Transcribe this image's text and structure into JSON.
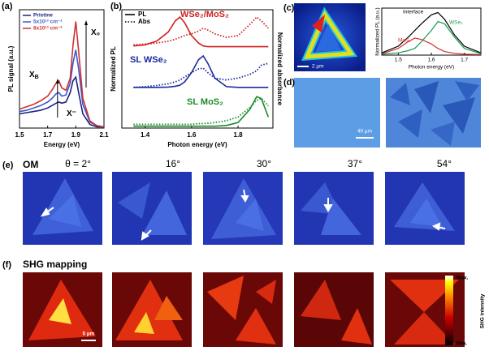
{
  "chart_data": [
    {
      "type": "line",
      "xlabel": "Energy (eV)",
      "ylabel": "PL signal (a.u.)",
      "x": [
        1.5,
        1.55,
        1.6,
        1.65,
        1.7,
        1.73,
        1.76,
        1.78,
        1.8,
        1.83,
        1.86,
        1.88,
        1.9,
        1.92,
        1.95,
        2.0,
        2.05,
        2.1
      ],
      "xlim": [
        1.5,
        2.1
      ],
      "xticks": [
        1.5,
        1.7,
        1.9,
        2.1
      ],
      "ylim": [
        0,
        1
      ],
      "series": [
        {
          "name": "Pristine",
          "color": "#1a237e",
          "values": [
            0.12,
            0.13,
            0.14,
            0.15,
            0.17,
            0.19,
            0.21,
            0.22,
            0.21,
            0.22,
            0.3,
            0.4,
            0.43,
            0.3,
            0.12,
            0.03,
            0.01,
            0.01
          ]
        },
        {
          "name": "5x10¹³ cm⁻²",
          "color": "#3a5ad0",
          "values": [
            0.14,
            0.15,
            0.17,
            0.19,
            0.22,
            0.25,
            0.29,
            0.3,
            0.27,
            0.28,
            0.38,
            0.55,
            0.66,
            0.5,
            0.2,
            0.05,
            0.02,
            0.01
          ]
        },
        {
          "name": "8x10¹³ cm⁻²",
          "color": "#d03030",
          "values": [
            0.16,
            0.18,
            0.2,
            0.23,
            0.27,
            0.32,
            0.38,
            0.4,
            0.34,
            0.32,
            0.42,
            0.7,
            0.9,
            0.65,
            0.25,
            0.06,
            0.02,
            0.01
          ]
        }
      ],
      "annotations": [
        {
          "text": "X",
          "sub": "B"
        },
        {
          "text": "X⁻"
        },
        {
          "text": "X₀"
        }
      ]
    },
    {
      "type": "line",
      "xlabel": "Photon energy (eV)",
      "ylabel": "Normalized PL",
      "y2label": "Normalized absorbance",
      "x": [
        1.35,
        1.4,
        1.45,
        1.5,
        1.53,
        1.55,
        1.57,
        1.6,
        1.63,
        1.65,
        1.67,
        1.7,
        1.75,
        1.8,
        1.85,
        1.88,
        1.9,
        1.93
      ],
      "xlim": [
        1.3,
        1.95
      ],
      "xticks": [
        1.4,
        1.6,
        1.8
      ],
      "ylim": [
        0,
        3.2
      ],
      "legend": [
        {
          "label": "PL",
          "style": "solid"
        },
        {
          "label": "Abs",
          "style": "dotted"
        }
      ],
      "series": [
        {
          "name": "WSe₂/MoS₂",
          "color": "#d02020",
          "style": "solid",
          "values": [
            2.22,
            2.25,
            2.35,
            2.6,
            2.9,
            3.0,
            2.85,
            2.5,
            2.3,
            2.22,
            2.2,
            2.2,
            2.2,
            2.2,
            2.2,
            2.2,
            2.2,
            2.2
          ]
        },
        {
          "color": "#d02020",
          "style": "dotted",
          "values": [
            2.25,
            2.27,
            2.3,
            2.35,
            2.4,
            2.45,
            2.5,
            2.55,
            2.62,
            2.7,
            2.65,
            2.55,
            2.45,
            2.5,
            2.8,
            3.0,
            2.9,
            2.7
          ]
        },
        {
          "name": "SL WSe₂",
          "color": "#1a2a9a",
          "style": "solid",
          "values": [
            1.1,
            1.1,
            1.1,
            1.11,
            1.13,
            1.16,
            1.25,
            1.5,
            1.85,
            1.95,
            1.75,
            1.35,
            1.12,
            1.1,
            1.1,
            1.1,
            1.1,
            1.1
          ]
        },
        {
          "color": "#1a2a9a",
          "style": "dotted",
          "values": [
            1.1,
            1.12,
            1.15,
            1.2,
            1.25,
            1.3,
            1.38,
            1.5,
            1.6,
            1.62,
            1.5,
            1.35,
            1.3,
            1.35,
            1.45,
            1.55,
            1.7,
            1.75
          ]
        },
        {
          "name": "SL MoS₂",
          "color": "#1a8a2a",
          "style": "solid",
          "values": [
            0.05,
            0.05,
            0.05,
            0.05,
            0.05,
            0.05,
            0.05,
            0.05,
            0.05,
            0.05,
            0.05,
            0.05,
            0.07,
            0.15,
            0.5,
            0.85,
            0.8,
            0.3
          ]
        },
        {
          "color": "#1a8a2a",
          "style": "dotted",
          "values": [
            0.1,
            0.1,
            0.1,
            0.1,
            0.1,
            0.1,
            0.1,
            0.1,
            0.12,
            0.12,
            0.13,
            0.15,
            0.2,
            0.3,
            0.55,
            0.75,
            0.8,
            0.6
          ]
        }
      ]
    },
    {
      "type": "line",
      "xlabel": "Photon energy (eV)",
      "ylabel": "Normalized PL (a.u.)",
      "x": [
        1.45,
        1.5,
        1.53,
        1.55,
        1.57,
        1.6,
        1.62,
        1.64,
        1.67,
        1.7,
        1.75
      ],
      "xlim": [
        1.45,
        1.75
      ],
      "xticks": [
        1.5,
        1.6,
        1.7
      ],
      "ylim": [
        0,
        1.05
      ],
      "series": [
        {
          "name": "Interface",
          "color": "#000000",
          "values": [
            0.05,
            0.2,
            0.4,
            0.55,
            0.7,
            0.9,
            0.95,
            0.8,
            0.45,
            0.2,
            0.05
          ]
        },
        {
          "name": "WSe₂",
          "color": "#1a9a4a",
          "values": [
            0.02,
            0.05,
            0.1,
            0.15,
            0.3,
            0.55,
            0.75,
            0.7,
            0.4,
            0.15,
            0.03
          ]
        },
        {
          "name": "MoS₂",
          "color": "#d03030",
          "values": [
            0.03,
            0.15,
            0.3,
            0.38,
            0.35,
            0.25,
            0.15,
            0.08,
            0.04,
            0.02,
            0.01
          ]
        }
      ]
    }
  ],
  "figure": {
    "panels": [
      "(a)",
      "(b)",
      "(c)",
      "(d)",
      "(e)",
      "(f)"
    ],
    "c_scale": "2 µm",
    "d_scale": "40 µm",
    "e_label": "OM",
    "e_angles": [
      "θ = 2°",
      "16°",
      "30°",
      "37°",
      "54°"
    ],
    "f_label": "SHG mapping",
    "f_scale": "5 µm",
    "colorbar": {
      "max": "Max.",
      "min": "Min.",
      "label": "SHG intensity"
    }
  }
}
